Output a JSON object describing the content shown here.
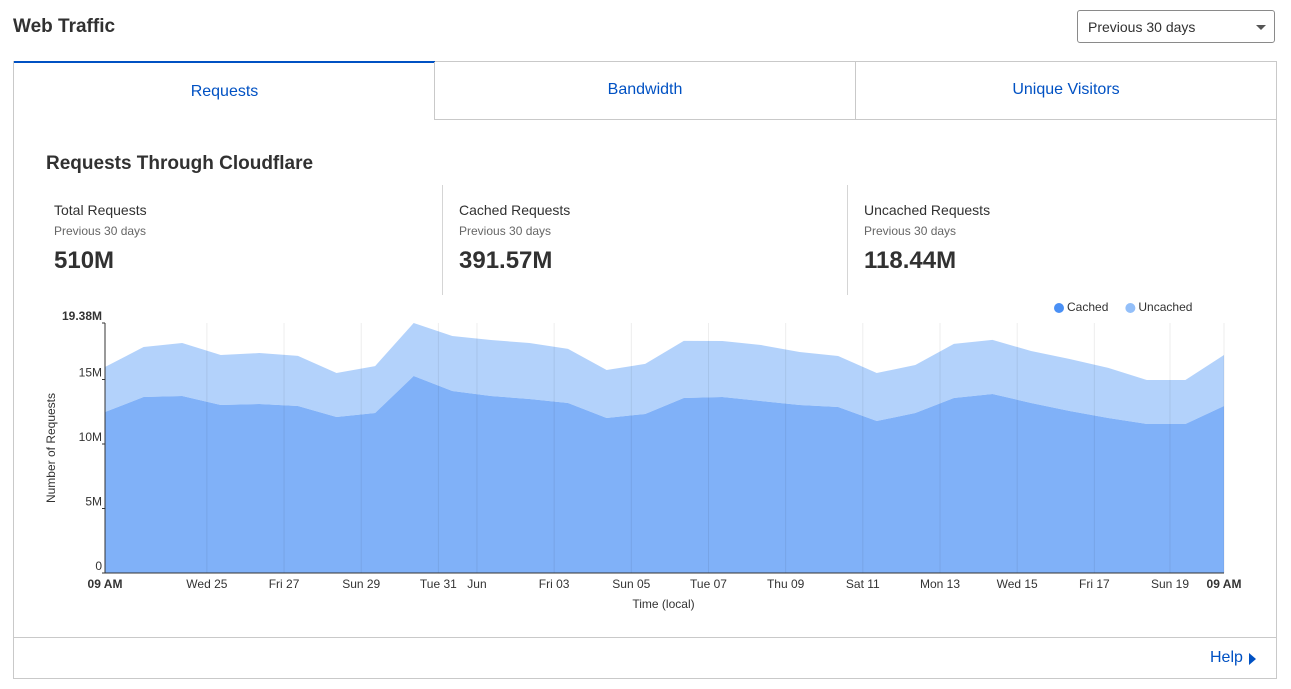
{
  "header": {
    "title": "Web Traffic",
    "dropdown": "Previous 30 days"
  },
  "tabs": [
    "Requests",
    "Bandwidth",
    "Unique Visitors"
  ],
  "section_title": "Requests Through Cloudflare",
  "stats": [
    {
      "label": "Total Requests",
      "period": "Previous 30 days",
      "value": "510M"
    },
    {
      "label": "Cached Requests",
      "period": "Previous 30 days",
      "value": "391.57M"
    },
    {
      "label": "Uncached Requests",
      "period": "Previous 30 days",
      "value": "118.44M"
    }
  ],
  "footer": {
    "help": "Help"
  },
  "chart_data": {
    "type": "stacked_area",
    "x_label": "Time (local)",
    "y_label": "Number of Requests",
    "x": [
      0,
      1,
      2,
      3,
      4,
      5,
      6,
      7,
      8,
      9,
      10,
      11,
      12,
      13,
      14,
      15,
      16,
      17,
      18,
      19,
      20,
      21,
      22,
      23,
      24,
      25,
      26,
      27,
      28,
      29
    ],
    "series": [
      {
        "name": "Cached",
        "color": "#4a90f5",
        "values": [
          12.48,
          13.64,
          13.72,
          13.02,
          13.1,
          12.95,
          12.09,
          12.4,
          15.27,
          14.11,
          13.72,
          13.49,
          13.18,
          12.02,
          12.33,
          13.57,
          13.64,
          13.33,
          13.02,
          12.87,
          11.78,
          12.4,
          13.57,
          13.88,
          13.18,
          12.56,
          12.02,
          11.55,
          11.55,
          12.95
        ]
      },
      {
        "name": "Uncached",
        "color": "#93bff9",
        "values": [
          3.49,
          3.88,
          4.11,
          3.88,
          3.95,
          3.88,
          3.41,
          3.64,
          4.11,
          4.26,
          4.34,
          4.34,
          4.19,
          3.72,
          3.88,
          4.42,
          4.34,
          4.34,
          4.11,
          3.95,
          3.72,
          3.72,
          4.19,
          4.19,
          4.03,
          4.03,
          3.88,
          3.41,
          3.41,
          3.95
        ]
      }
    ],
    "xlim": [
      0,
      29
    ],
    "xticks": [
      {
        "value": 0,
        "label": "09 AM"
      },
      {
        "value": 2.64,
        "label": "Wed 25"
      },
      {
        "value": 4.64,
        "label": "Fri 27"
      },
      {
        "value": 6.64,
        "label": "Sun 29"
      },
      {
        "value": 8.64,
        "label": "Tue 31"
      },
      {
        "value": 9.64,
        "label": "Jun"
      },
      {
        "value": 11.64,
        "label": "Fri 03"
      },
      {
        "value": 13.64,
        "label": "Sun 05"
      },
      {
        "value": 15.64,
        "label": "Tue 07"
      },
      {
        "value": 17.64,
        "label": "Thu 09"
      },
      {
        "value": 19.64,
        "label": "Sat 11"
      },
      {
        "value": 21.64,
        "label": "Mon 13"
      },
      {
        "value": 23.64,
        "label": "Wed 15"
      },
      {
        "value": 25.64,
        "label": "Fri 17"
      },
      {
        "value": 27.6,
        "label": "Sun 19"
      },
      {
        "value": 29,
        "label": "09 AM"
      }
    ],
    "ylim": [
      0,
      19.38
    ],
    "yticks": [
      0,
      {
        "value": 5,
        "label": "5M"
      },
      {
        "value": 10,
        "label": "10M"
      },
      {
        "value": 15,
        "label": "15M"
      },
      {
        "value": 19.38,
        "label": "19.38M"
      }
    ],
    "grid": "x",
    "legend": "top-right"
  }
}
